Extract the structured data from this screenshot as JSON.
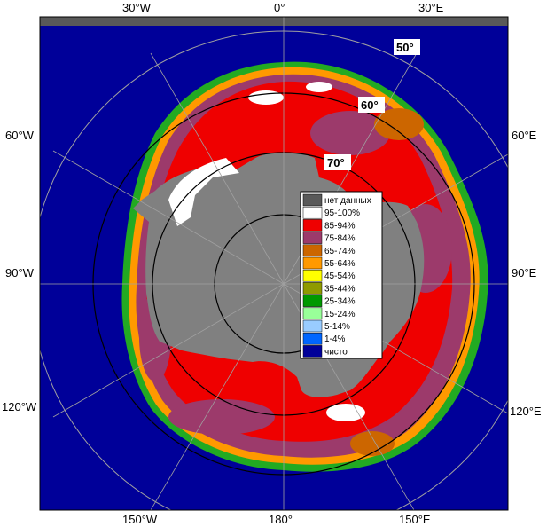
{
  "map": {
    "top_labels": [
      "30°W",
      "0°",
      "30°E"
    ],
    "left_labels": [
      "60°W",
      "90°W",
      "120°W"
    ],
    "right_labels": [
      "60°E",
      "90°E",
      "120°E"
    ],
    "bottom_labels": [
      "150°W",
      "180°",
      "150°E"
    ],
    "lat_labels": [
      "50°",
      "60°",
      "70°"
    ]
  },
  "legend": {
    "items": [
      {
        "label": "нет данных",
        "color": "#595959"
      },
      {
        "label": "95-100%",
        "color": "#ffffff"
      },
      {
        "label": "85-94%",
        "color": "#ef0000"
      },
      {
        "label": "75-84%",
        "color": "#9c3a6b"
      },
      {
        "label": "65-74%",
        "color": "#cc6600"
      },
      {
        "label": "55-64%",
        "color": "#ff9900"
      },
      {
        "label": "45-54%",
        "color": "#ffff00"
      },
      {
        "label": "35-44%",
        "color": "#8f9a00"
      },
      {
        "label": "25-34%",
        "color": "#009900"
      },
      {
        "label": "15-24%",
        "color": "#99ff99"
      },
      {
        "label": "5-14%",
        "color": "#99ccff"
      },
      {
        "label": "1-4%",
        "color": "#0066ff"
      },
      {
        "label": "чисто",
        "color": "#000099"
      }
    ]
  },
  "colors": {
    "ocean": "#000099",
    "land": "#808080",
    "graticule": "#a0a0a0",
    "circle": "#000000"
  }
}
